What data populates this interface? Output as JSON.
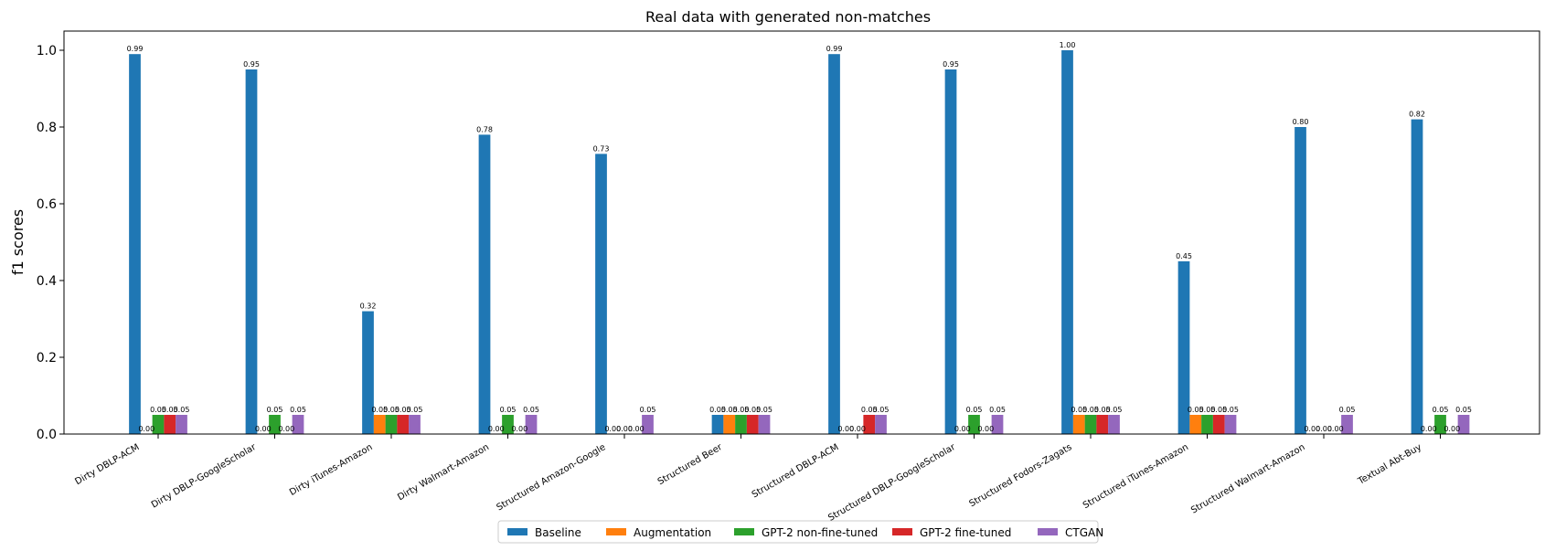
{
  "chart_data": {
    "type": "bar",
    "title": "Real data with generated non-matches",
    "xlabel": "",
    "ylabel": "f1 scores",
    "ylim": [
      0,
      1.05
    ],
    "yticks": [
      "0.0",
      "0.2",
      "0.4",
      "0.6",
      "0.8",
      "1.0"
    ],
    "grid": false,
    "legend_position": "bottom-center",
    "categories": [
      "Dirty DBLP-ACM",
      "Dirty DBLP-GoogleScholar",
      "Dirty iTunes-Amazon",
      "Dirty Walmart-Amazon",
      "Structured Amazon-Google",
      "Structured Beer",
      "Structured DBLP-ACM",
      "Structured DBLP-GoogleScholar",
      "Structured Fodors-Zagats",
      "Structured iTunes-Amazon",
      "Structured Walmart-Amazon",
      "Textual Abt-Buy"
    ],
    "series": [
      {
        "name": "Baseline",
        "color": "#1f77b4",
        "values": [
          0.99,
          0.95,
          0.32,
          0.78,
          0.73,
          0.05,
          0.99,
          0.95,
          1.0,
          0.45,
          0.8,
          0.82
        ]
      },
      {
        "name": "Augmentation",
        "color": "#ff7f0e",
        "values": [
          0.0,
          0.0,
          0.05,
          0.0,
          0.0,
          0.05,
          0.0,
          0.0,
          0.05,
          0.05,
          0.0,
          0.0
        ]
      },
      {
        "name": "GPT-2 non-fine-tuned",
        "color": "#2ca02c",
        "values": [
          0.05,
          0.05,
          0.05,
          0.05,
          0.0,
          0.05,
          0.0,
          0.05,
          0.05,
          0.05,
          0.0,
          0.05
        ]
      },
      {
        "name": "GPT-2 fine-tuned",
        "color": "#d62728",
        "values": [
          0.05,
          0.0,
          0.05,
          0.0,
          0.0,
          0.05,
          0.05,
          0.0,
          0.05,
          0.05,
          0.0,
          0.0
        ]
      },
      {
        "name": "CTGAN",
        "color": "#9467bd",
        "values": [
          0.05,
          0.05,
          0.05,
          0.05,
          0.05,
          0.05,
          0.05,
          0.05,
          0.05,
          0.05,
          0.05,
          0.05
        ]
      }
    ]
  }
}
